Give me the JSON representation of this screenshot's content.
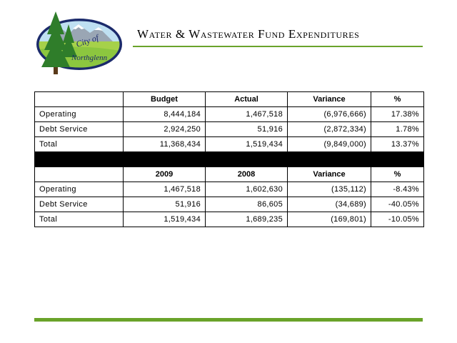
{
  "header": {
    "title": "Water & Wastewater Fund Expenditures",
    "logo_text_line1": "City of",
    "logo_text_line2": "Northglenn",
    "colors": {
      "accent_green": "#6aa32a",
      "logo_green": "#2f7d2a",
      "logo_navy": "#1b2a6b"
    }
  },
  "table_budget": {
    "headers": [
      "",
      "Budget",
      "Actual",
      "Variance",
      "%"
    ],
    "rows": [
      [
        "Operating",
        "8,444,184",
        "1,467,518",
        "(6,976,666)",
        "17.38%"
      ],
      [
        "Debt Service",
        "2,924,250",
        "51,916",
        "(2,872,334)",
        "1.78%"
      ],
      [
        "Total",
        "11,368,434",
        "1,519,434",
        "(9,849,000)",
        "13.37%"
      ]
    ]
  },
  "table_years": {
    "headers": [
      "",
      "2009",
      "2008",
      "Variance",
      "%"
    ],
    "rows": [
      [
        "Operating",
        "1,467,518",
        "1,602,630",
        "(135,112)",
        "-8.43%"
      ],
      [
        "Debt Service",
        "51,916",
        "86,605",
        "(34,689)",
        "-40.05%"
      ],
      [
        "Total",
        "1,519,434",
        "1,689,235",
        "(169,801)",
        "-10.05%"
      ]
    ]
  }
}
